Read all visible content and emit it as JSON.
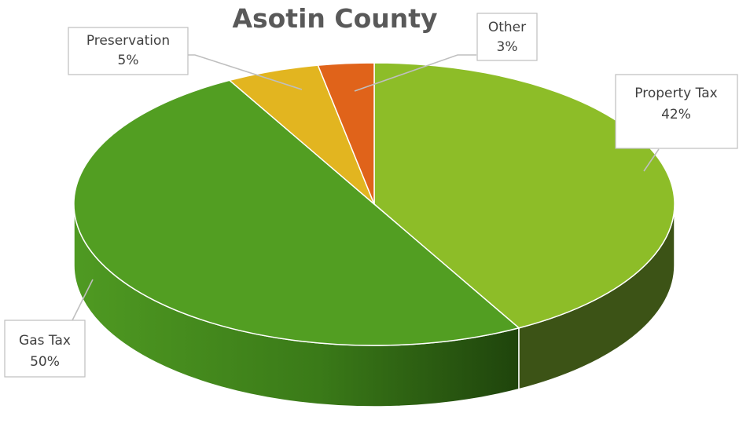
{
  "chart_data": {
    "type": "pie",
    "style": "3d",
    "title": "Asotin County",
    "slices": [
      {
        "name": "Property Tax",
        "value": 42,
        "label": "42%",
        "color": "#8dbd28",
        "side_color": "#3c5316"
      },
      {
        "name": "Gas Tax",
        "value": 50,
        "label": "50%",
        "color": "#529e22",
        "side_color": "#3f7f1a"
      },
      {
        "name": "Preservation",
        "value": 5,
        "label": "5%",
        "color": "#e2b520",
        "side_color": "#9a7a10"
      },
      {
        "name": "Other",
        "value": 3,
        "label": "3%",
        "color": "#e0631a",
        "side_color": "#9c4210"
      }
    ],
    "legend": "none"
  }
}
